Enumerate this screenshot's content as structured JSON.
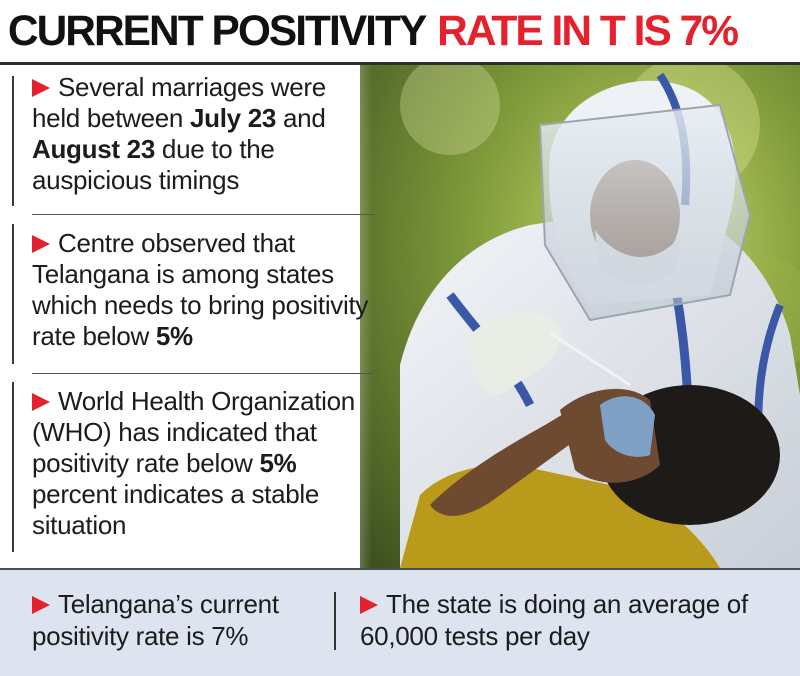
{
  "header": {
    "title_black": "CURRENT POSITIVITY",
    "title_red": "RATE IN T IS 7%"
  },
  "colors": {
    "accent_red": "#e3222d",
    "band_blue": "#dde4ef",
    "text": "#1c1c1c"
  },
  "bullets": [
    {
      "parts": [
        {
          "text": "Several marriages were held between "
        },
        {
          "text": "July 23",
          "bold": true
        },
        {
          "text": " and "
        },
        {
          "text": "August 23",
          "bold": true
        },
        {
          "text": " due to the auspicious timings"
        }
      ]
    },
    {
      "parts": [
        {
          "text": "Centre observed that Telangana is among states which needs to bring positivity rate below "
        },
        {
          "text": "5%",
          "bold": true
        }
      ]
    },
    {
      "parts": [
        {
          "text": "World Health Organization (WHO) has indicated that positivity rate below "
        },
        {
          "text": "5%",
          "bold": true
        },
        {
          "text": " percent indicates a stable situation"
        }
      ]
    }
  ],
  "bottom": {
    "left": "Telangana’s current positivity rate is 7%",
    "right": "The state is doing an average of 60,000 tests per day"
  },
  "icons": {
    "bullet": "red-arrow-icon"
  }
}
